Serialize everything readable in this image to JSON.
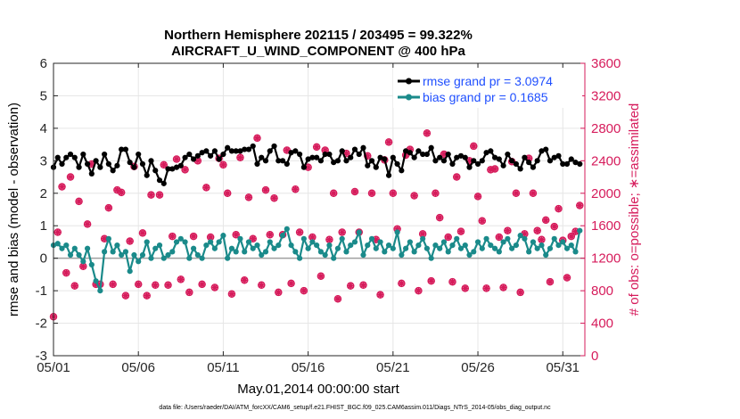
{
  "chart_data": {
    "type": "line",
    "title": "Northern Hemisphere 202115 / 203495 = 99.322%",
    "subtitle": "AIRCRAFT_U_WIND_COMPONENT @ 400 hPa",
    "xlabel": "May.01,2014 00:00:00 start",
    "ylabel_left": "rmse and bias (model - observation)",
    "ylabel_right": "# of obs: o=possible; ∗=assimilated",
    "footnote": "data file: /Users/raeder/DAI/ATM_forcXX/CAM6_setup/f.e21.FHIST_BGC.f09_025.CAM6assim.011/Diags_NTrS_2014-05/obs_diag_output.nc",
    "x_ticks": [
      "05/01",
      "05/06",
      "05/11",
      "05/16",
      "05/21",
      "05/26",
      "05/31"
    ],
    "x_tick_days": [
      0,
      5,
      10,
      15,
      20,
      25,
      30
    ],
    "xlim_days": [
      0,
      31.3
    ],
    "x_unit": "days since May.01,2014 00:00:00",
    "ylim_left": [
      -3,
      6
    ],
    "yticks_left": [
      "-3",
      "-2",
      "-1",
      "0",
      "1",
      "2",
      "3",
      "4",
      "5",
      "6"
    ],
    "ylim_right": [
      0,
      3600
    ],
    "yticks_right": [
      "0",
      "400",
      "800",
      "1200",
      "1600",
      "2000",
      "2400",
      "2800",
      "3200",
      "3600"
    ],
    "zero_line": 0,
    "legend_position": "top-right",
    "colors": {
      "rmse": "#000000",
      "bias": "#1a8a8a",
      "obs": "#d61b5b",
      "zero_line": "#a0a0a0",
      "legend_text": "#1f4fff",
      "right_axis": "#d61b5b"
    },
    "series": [
      {
        "name": "rmse grand pr = 3.0974",
        "axis": "left",
        "x_days": [
          0.0,
          0.25,
          0.5,
          0.75,
          1.0,
          1.25,
          1.5,
          1.75,
          2.0,
          2.25,
          2.5,
          2.75,
          3.0,
          3.25,
          3.5,
          3.75,
          4.0,
          4.25,
          4.5,
          4.75,
          5.0,
          5.25,
          5.5,
          5.75,
          6.0,
          6.25,
          6.5,
          6.75,
          7.0,
          7.25,
          7.5,
          7.75,
          8.0,
          8.25,
          8.5,
          8.75,
          9.0,
          9.25,
          9.5,
          9.75,
          10.0,
          10.25,
          10.5,
          10.75,
          11.0,
          11.25,
          11.5,
          11.75,
          12.0,
          12.25,
          12.5,
          12.75,
          13.0,
          13.25,
          13.5,
          13.75,
          14.0,
          14.25,
          14.5,
          14.75,
          15.0,
          15.25,
          15.5,
          15.75,
          16.0,
          16.25,
          16.5,
          16.75,
          17.0,
          17.25,
          17.5,
          17.75,
          18.0,
          18.25,
          18.5,
          18.75,
          19.0,
          19.25,
          19.5,
          19.75,
          20.0,
          20.25,
          20.5,
          20.75,
          21.0,
          21.25,
          21.5,
          21.75,
          22.0,
          22.25,
          22.5,
          22.75,
          23.0,
          23.25,
          23.5,
          23.75,
          24.0,
          24.25,
          24.5,
          24.75,
          25.0,
          25.25,
          25.5,
          25.75,
          26.0,
          26.25,
          26.5,
          26.75,
          27.0,
          27.25,
          27.5,
          27.75,
          28.0,
          28.25,
          28.5,
          28.75,
          29.0,
          29.25,
          29.5,
          29.75,
          30.0,
          30.25,
          30.5,
          30.75,
          31.0
        ],
        "values": [
          2.8,
          3.1,
          2.9,
          3.1,
          3.2,
          3.1,
          2.8,
          3.2,
          2.9,
          2.6,
          3.0,
          2.8,
          3.2,
          2.9,
          2.7,
          2.85,
          3.35,
          3.35,
          2.95,
          2.8,
          3.2,
          2.9,
          2.55,
          3.0,
          2.7,
          2.4,
          2.3,
          2.75,
          2.75,
          2.8,
          2.85,
          3.1,
          3.2,
          3.05,
          3.15,
          3.25,
          3.3,
          3.15,
          3.3,
          3.05,
          3.2,
          3.4,
          3.3,
          3.3,
          3.3,
          3.35,
          3.35,
          3.45,
          2.9,
          3.1,
          3.0,
          3.3,
          3.45,
          3.0,
          3.0,
          2.9,
          3.25,
          3.3,
          3.2,
          2.8,
          3.05,
          3.1,
          3.1,
          3.0,
          3.2,
          3.2,
          2.95,
          3.0,
          3.3,
          3.0,
          3.1,
          3.35,
          3.2,
          3.4,
          2.85,
          3.0,
          2.8,
          3.1,
          3.05,
          2.55,
          3.1,
          2.9,
          2.7,
          3.3,
          3.25,
          3.1,
          3.3,
          3.2,
          3.2,
          3.4,
          3.0,
          3.1,
          3.0,
          3.2,
          2.9,
          3.1,
          3.15,
          3.1,
          2.8,
          3.0,
          2.9,
          3.0,
          3.25,
          3.3,
          3.1,
          3.05,
          2.85,
          3.2,
          3.0,
          2.9,
          2.75,
          3.1,
          2.95,
          2.8,
          3.0,
          3.3,
          3.35,
          3.0,
          3.1,
          3.15,
          2.9,
          2.9,
          3.05,
          2.95,
          2.9
        ]
      },
      {
        "name": "bias grand pr = 0.1685",
        "axis": "left",
        "x_days": [
          0.0,
          0.25,
          0.5,
          0.75,
          1.0,
          1.25,
          1.5,
          1.75,
          2.0,
          2.25,
          2.5,
          2.75,
          3.0,
          3.25,
          3.5,
          3.75,
          4.0,
          4.25,
          4.5,
          4.75,
          5.0,
          5.25,
          5.5,
          5.75,
          6.0,
          6.25,
          6.5,
          6.75,
          7.0,
          7.25,
          7.5,
          7.75,
          8.0,
          8.25,
          8.5,
          8.75,
          9.0,
          9.25,
          9.5,
          9.75,
          10.0,
          10.25,
          10.5,
          10.75,
          11.0,
          11.25,
          11.5,
          11.75,
          12.0,
          12.25,
          12.5,
          12.75,
          13.0,
          13.25,
          13.5,
          13.75,
          14.0,
          14.25,
          14.5,
          14.75,
          15.0,
          15.25,
          15.5,
          15.75,
          16.0,
          16.25,
          16.5,
          16.75,
          17.0,
          17.25,
          17.5,
          17.75,
          18.0,
          18.25,
          18.5,
          18.75,
          19.0,
          19.25,
          19.5,
          19.75,
          20.0,
          20.25,
          20.5,
          20.75,
          21.0,
          21.25,
          21.5,
          21.75,
          22.0,
          22.25,
          22.5,
          22.75,
          23.0,
          23.25,
          23.5,
          23.75,
          24.0,
          24.25,
          24.5,
          24.75,
          25.0,
          25.25,
          25.5,
          25.75,
          26.0,
          26.25,
          26.5,
          26.75,
          27.0,
          27.25,
          27.5,
          27.75,
          28.0,
          28.25,
          28.5,
          28.75,
          29.0,
          29.25,
          29.5,
          29.75,
          30.0,
          30.25,
          30.5,
          30.75,
          31.0
        ],
        "values": [
          0.4,
          0.45,
          0.3,
          0.4,
          0.1,
          0.3,
          0.1,
          -0.1,
          0.3,
          -0.2,
          -0.7,
          -1.0,
          0.2,
          0.6,
          0.2,
          0.4,
          0.1,
          0.2,
          -0.4,
          0.1,
          -0.1,
          0.1,
          0.5,
          0.0,
          0.3,
          0.4,
          0.0,
          0.1,
          0.2,
          0.5,
          0.6,
          0.5,
          0.0,
          0.3,
          0.1,
          0.0,
          0.4,
          0.5,
          0.3,
          0.5,
          0.7,
          0.0,
          0.3,
          0.2,
          0.6,
          0.2,
          0.5,
          0.3,
          0.4,
          0.1,
          0.2,
          0.5,
          0.3,
          0.4,
          0.7,
          0.9,
          0.4,
          0.2,
          0.0,
          0.6,
          0.3,
          0.5,
          0.4,
          0.2,
          0.1,
          0.4,
          0.0,
          0.3,
          0.6,
          0.2,
          0.4,
          0.5,
          0.8,
          0.1,
          0.4,
          0.6,
          0.3,
          0.5,
          0.2,
          0.4,
          0.3,
          0.8,
          0.1,
          0.3,
          0.5,
          0.2,
          0.4,
          0.6,
          0.3,
          0.0,
          0.4,
          0.3,
          0.5,
          0.2,
          0.4,
          0.6,
          0.3,
          0.4,
          0.1,
          0.2,
          0.5,
          0.3,
          0.6,
          0.4,
          0.3,
          0.2,
          0.5,
          0.6,
          0.3,
          0.4,
          0.7,
          0.6,
          0.2,
          0.5,
          0.3,
          0.4,
          0.1,
          0.3,
          0.6,
          0.4,
          0.5,
          0.3,
          0.4,
          0.2,
          0.85
        ]
      },
      {
        "name": "",
        "axis": "right",
        "marker": "o",
        "x_days": [
          0.0,
          0.25,
          0.5,
          0.75,
          1.0,
          1.25,
          1.5,
          1.75,
          2.0,
          2.25,
          2.5,
          2.75,
          3.0,
          3.25,
          3.5,
          3.75,
          4.0,
          4.25,
          4.5,
          4.75,
          5.0,
          5.25,
          5.5,
          5.75,
          6.0,
          6.25,
          6.5,
          6.75,
          7.0,
          7.25,
          7.5,
          7.75,
          8.0,
          8.25,
          8.5,
          8.75,
          9.0,
          9.25,
          9.5,
          9.75,
          10.0,
          10.25,
          10.5,
          10.75,
          11.0,
          11.25,
          11.5,
          11.75,
          12.0,
          12.25,
          12.5,
          12.75,
          13.0,
          13.25,
          13.5,
          13.75,
          14.0,
          14.25,
          14.5,
          14.75,
          15.0,
          15.25,
          15.5,
          15.75,
          16.0,
          16.25,
          16.5,
          16.75,
          17.0,
          17.25,
          17.5,
          17.75,
          18.0,
          18.25,
          18.5,
          18.75,
          19.0,
          19.25,
          19.5,
          19.75,
          20.0,
          20.25,
          20.5,
          20.75,
          21.0,
          21.25,
          21.5,
          21.75,
          22.0,
          22.25,
          22.5,
          22.75,
          23.0,
          23.25,
          23.5,
          23.75,
          24.0,
          24.25,
          24.5,
          24.75,
          25.0,
          25.25,
          25.5,
          25.75,
          26.0,
          26.25,
          26.5,
          26.75,
          27.0,
          27.25,
          27.5,
          27.75,
          28.0,
          28.25,
          28.5,
          28.75,
          29.0,
          29.25,
          29.5,
          29.75,
          30.0,
          30.25,
          30.5,
          30.75,
          31.0
        ],
        "values": [
          480,
          1520,
          2080,
          1020,
          2200,
          860,
          1900,
          1100,
          1620,
          2360,
          880,
          880,
          1440,
          1820,
          880,
          2040,
          2010,
          740,
          1410,
          2330,
          880,
          1510,
          740,
          1980,
          870,
          1980,
          2350,
          870,
          1470,
          2420,
          940,
          2290,
          780,
          1470,
          2400,
          880,
          2070,
          1460,
          840,
          2430,
          2350,
          2000,
          760,
          1490,
          2440,
          930,
          1950,
          1440,
          2680,
          870,
          2040,
          1490,
          1940,
          780,
          1490,
          2530,
          890,
          2050,
          1520,
          800,
          2320,
          1460,
          2570,
          980,
          2530,
          1430,
          2000,
          700,
          1520,
          2490,
          860,
          2020,
          1520,
          870,
          2460,
          2000,
          1430,
          750,
          2410,
          2630,
          2000,
          1560,
          890,
          2470,
          2540,
          1970,
          800,
          1500,
          2740,
          920,
          2000,
          1700,
          2480,
          1460,
          910,
          2200,
          1530,
          830,
          2400,
          2580,
          1960,
          1660,
          830,
          2290,
          2300,
          1460,
          840,
          1540,
          2390,
          2000,
          780,
          1500,
          2430,
          2000,
          1540,
          1430,
          1670,
          910,
          1590,
          1810,
          1420,
          960,
          1470,
          1530,
          1850
        ]
      },
      {
        "name": "",
        "axis": "right",
        "marker": "*",
        "x_days": [
          0.0,
          0.25,
          0.5,
          0.75,
          1.0,
          1.25,
          1.5,
          1.75,
          2.0,
          2.25,
          2.5,
          2.75,
          3.0,
          3.25,
          3.5,
          3.75,
          4.0,
          4.25,
          4.5,
          4.75,
          5.0,
          5.25,
          5.5,
          5.75,
          6.0,
          6.25,
          6.5,
          6.75,
          7.0,
          7.25,
          7.5,
          7.75,
          8.0,
          8.25,
          8.5,
          8.75,
          9.0,
          9.25,
          9.5,
          9.75,
          10.0,
          10.25,
          10.5,
          10.75,
          11.0,
          11.25,
          11.5,
          11.75,
          12.0,
          12.25,
          12.5,
          12.75,
          13.0,
          13.25,
          13.5,
          13.75,
          14.0,
          14.25,
          14.5,
          14.75,
          15.0,
          15.25,
          15.5,
          15.75,
          16.0,
          16.25,
          16.5,
          16.75,
          17.0,
          17.25,
          17.5,
          17.75,
          18.0,
          18.25,
          18.5,
          18.75,
          19.0,
          19.25,
          19.5,
          19.75,
          20.0,
          20.25,
          20.5,
          20.75,
          21.0,
          21.25,
          21.5,
          21.75,
          22.0,
          22.25,
          22.5,
          22.75,
          23.0,
          23.25,
          23.5,
          23.75,
          24.0,
          24.25,
          24.5,
          24.75,
          25.0,
          25.25,
          25.5,
          25.75,
          26.0,
          26.25,
          26.5,
          26.75,
          27.0,
          27.25,
          27.5,
          27.75,
          28.0,
          28.25,
          28.5,
          28.75,
          29.0,
          29.25,
          29.5,
          29.75,
          30.0,
          30.25,
          30.5,
          30.75,
          31.0
        ],
        "values": [
          480,
          1520,
          2080,
          1020,
          2200,
          860,
          1900,
          1100,
          1620,
          2360,
          880,
          880,
          1440,
          1820,
          880,
          2040,
          2010,
          740,
          1410,
          2330,
          880,
          1510,
          740,
          1980,
          870,
          1980,
          2350,
          870,
          1470,
          2420,
          940,
          2290,
          780,
          1470,
          2400,
          880,
          2070,
          1460,
          840,
          2430,
          2350,
          2000,
          760,
          1490,
          2440,
          930,
          1950,
          1440,
          2680,
          870,
          2040,
          1490,
          1940,
          780,
          1490,
          2530,
          890,
          2050,
          1520,
          800,
          2320,
          1460,
          2570,
          980,
          2530,
          1430,
          2000,
          700,
          1520,
          2490,
          860,
          2020,
          1520,
          870,
          2460,
          2000,
          1430,
          750,
          2410,
          2630,
          2000,
          1560,
          890,
          2470,
          2540,
          1970,
          800,
          1500,
          2740,
          920,
          2000,
          1700,
          2480,
          1460,
          910,
          2200,
          1530,
          830,
          2400,
          2580,
          1960,
          1660,
          830,
          2290,
          2300,
          1460,
          840,
          1540,
          2390,
          2000,
          780,
          1500,
          2430,
          2000,
          1540,
          1430,
          1670,
          910,
          1590,
          1810,
          1420,
          960,
          1470,
          1530,
          1850
        ]
      }
    ]
  }
}
